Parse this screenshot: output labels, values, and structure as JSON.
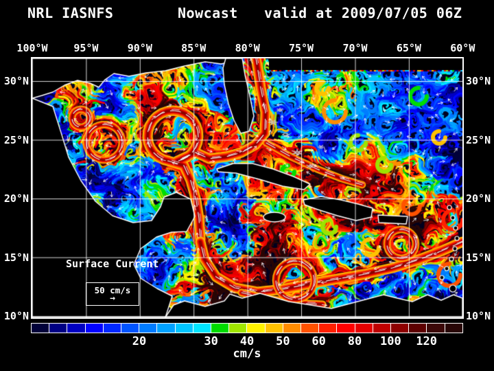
{
  "header": {
    "model": "NRL IASNFS",
    "product": "Nowcast",
    "valid": "valid at 2009/07/05 06Z"
  },
  "axes": {
    "lon_labels": [
      "100°W",
      "95°W",
      "90°W",
      "85°W",
      "80°W",
      "75°W",
      "70°W",
      "65°W",
      "60°W"
    ],
    "lat_labels": [
      "30°N",
      "25°N",
      "20°N",
      "15°N",
      "10°N"
    ]
  },
  "legend": {
    "title": "Surface Current",
    "scale_value": "50 cm/s",
    "scale_arrow": "→"
  },
  "colorbar": {
    "units": "cm/s",
    "cells": [
      "#02023A",
      "#000084",
      "#0000C2",
      "#0202FF",
      "#0028FF",
      "#0054FF",
      "#007CFF",
      "#00A2FF",
      "#00C6FF",
      "#00E6FF",
      "#00DC00",
      "#A0E600",
      "#FFF200",
      "#FFC200",
      "#FF8C00",
      "#FF5200",
      "#FF2000",
      "#FF0000",
      "#E60000",
      "#C00000",
      "#8E0000",
      "#5E0000",
      "#3C0808",
      "#280606"
    ],
    "ticks": [
      {
        "label": "20",
        "boundary": 6
      },
      {
        "label": "30",
        "boundary": 10
      },
      {
        "label": "40",
        "boundary": 12
      },
      {
        "label": "50",
        "boundary": 14
      },
      {
        "label": "60",
        "boundary": 16
      },
      {
        "label": "80",
        "boundary": 18
      },
      {
        "label": "100",
        "boundary": 20
      },
      {
        "label": "120",
        "boundary": 22
      }
    ]
  }
}
